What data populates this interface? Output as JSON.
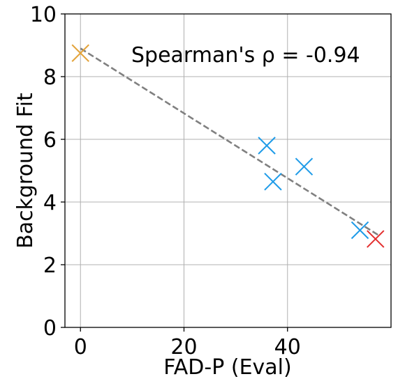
{
  "chart_data": {
    "type": "scatter",
    "title": "",
    "xlabel": "FAD-P (Eval)",
    "ylabel": "Background Fit",
    "xlim": [
      -3,
      60
    ],
    "ylim": [
      0,
      10
    ],
    "x_ticks": [
      0,
      20,
      40
    ],
    "y_ticks": [
      0,
      2,
      4,
      6,
      8,
      10
    ],
    "grid": true,
    "marker": "x",
    "annotation": "Spearman's ρ = -0.94",
    "points": [
      {
        "x": 0.0,
        "y": 8.75,
        "color": "#E3A33A"
      },
      {
        "x": 36.0,
        "y": 5.8,
        "color": "#1E9BE8"
      },
      {
        "x": 37.2,
        "y": 4.65,
        "color": "#1E9BE8"
      },
      {
        "x": 43.2,
        "y": 5.13,
        "color": "#1E9BE8"
      },
      {
        "x": 54.0,
        "y": 3.1,
        "color": "#1E9BE8"
      },
      {
        "x": 57.0,
        "y": 2.82,
        "color": "#E32D2D"
      }
    ],
    "trend_line": {
      "x": [
        0,
        57.5
      ],
      "y": [
        8.9,
        2.95
      ],
      "color": "#808080",
      "style": "dashed"
    }
  }
}
